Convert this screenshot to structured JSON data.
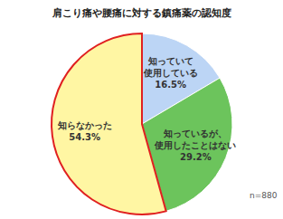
{
  "chart_data": {
    "type": "pie",
    "title": "肩こり痛や腰痛に対する鎮痛薬の認知度",
    "categories": [
      "知っていて\n使用している",
      "知っているが、\n使用したことはない",
      "知らなかった"
    ],
    "values": [
      16.5,
      29.2,
      54.3
    ],
    "value_labels": [
      "16.5%",
      "29.2%",
      "54.3%"
    ],
    "colors": [
      "#bcd5f5",
      "#6cc45c",
      "#fff6a3"
    ],
    "data_labels": true,
    "annotation": "n=880"
  }
}
